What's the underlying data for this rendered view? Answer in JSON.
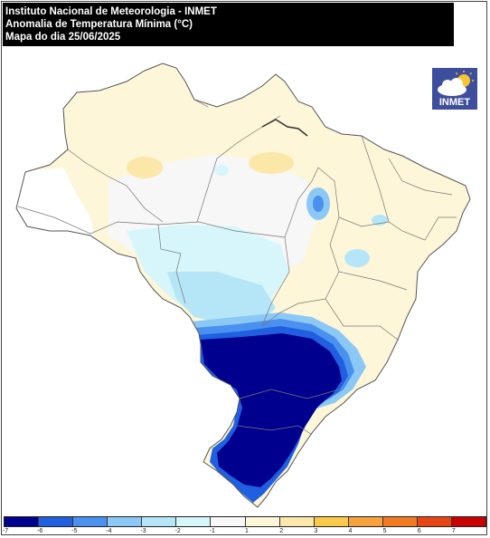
{
  "header": {
    "line1": "Instituto Nacional de Meteorologia - INMET",
    "line2": "Anomalia de Temperatura Mínima (°C)",
    "line3": "Mapa do dia 25/06/2025"
  },
  "logo": {
    "text": "INMET",
    "icon": "cloud-sun-icon",
    "color": "#3d4f9c"
  },
  "legend": {
    "colors": [
      "#00008f",
      "#1f5fe0",
      "#4a90ee",
      "#8cc8f5",
      "#b5e6f8",
      "#d6f6fb",
      "#f7f7f7",
      "#fdf6d8",
      "#fbe7a8",
      "#f9c94b",
      "#f7a23c",
      "#f27a22",
      "#e84515",
      "#c80000"
    ],
    "ticks": [
      "-7",
      "-6",
      "-5",
      "-4",
      "-3",
      "-2",
      "-1",
      "1",
      "2",
      "3",
      "4",
      "5",
      "6",
      "7"
    ]
  }
}
